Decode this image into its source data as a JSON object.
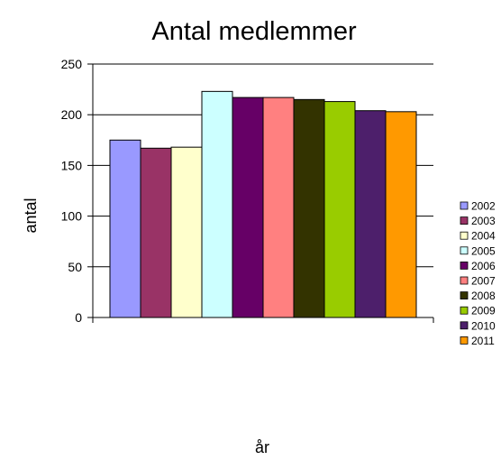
{
  "chart_data": {
    "type": "bar",
    "title": "Antal medlemmer",
    "xlabel": "år",
    "ylabel": "antal",
    "ylim": [
      0,
      250
    ],
    "yticks": [
      0,
      50,
      100,
      150,
      200,
      250
    ],
    "grid": true,
    "legend_position": "right",
    "series": [
      {
        "name": "2002",
        "value": 175,
        "color": "#9999ff"
      },
      {
        "name": "2003",
        "value": 167,
        "color": "#993366"
      },
      {
        "name": "2004",
        "value": 168,
        "color": "#ffffcc"
      },
      {
        "name": "2005",
        "value": 223,
        "color": "#ccffff"
      },
      {
        "name": "2006",
        "value": 217,
        "color": "#660066"
      },
      {
        "name": "2007",
        "value": 217,
        "color": "#ff8080"
      },
      {
        "name": "2008",
        "value": 215,
        "color": "#333300"
      },
      {
        "name": "2009",
        "value": 213,
        "color": "#99cc00"
      },
      {
        "name": "2010",
        "value": 204,
        "color": "#4d1f6b"
      },
      {
        "name": "2011",
        "value": 203,
        "color": "#ff9900"
      }
    ]
  }
}
